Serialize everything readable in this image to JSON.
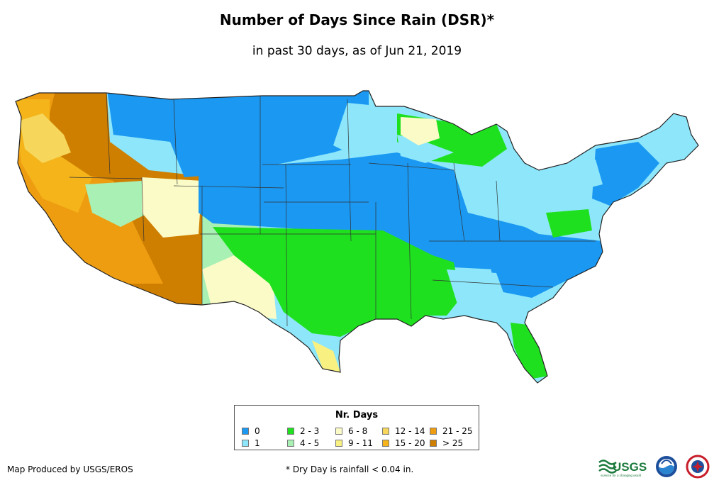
{
  "title": "Number of Days Since Rain (DSR)*",
  "subtitle": "in past 30 days, as of Jun 21, 2019",
  "legend": {
    "title": "Nr. Days",
    "items": [
      {
        "label": "0",
        "color": "#1a98f2"
      },
      {
        "label": "1",
        "color": "#8de6fa"
      },
      {
        "label": "2 - 3",
        "color": "#1fe01f"
      },
      {
        "label": "4 - 5",
        "color": "#a8f0b4"
      },
      {
        "label": "6 - 8",
        "color": "#fbfbc8"
      },
      {
        "label": "9 - 11",
        "color": "#f8f081"
      },
      {
        "label": "12 - 14",
        "color": "#f6d75c"
      },
      {
        "label": "15 - 20",
        "color": "#f4b41a"
      },
      {
        "label": "21 - 25",
        "color": "#ee9d10"
      },
      {
        "label": "> 25",
        "color": "#cf7f00"
      }
    ]
  },
  "credit": "Map Produced by USGS/EROS",
  "footnote": "* Dry Day is rainfall < 0.04 in.",
  "logos": {
    "usgs": "USGS",
    "usgs_tagline": "science for a changing world"
  }
}
